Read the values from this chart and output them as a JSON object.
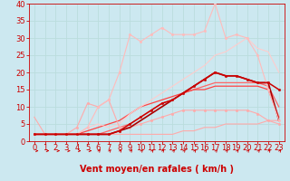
{
  "background_color": "#cce8f0",
  "grid_color": "#bbdddd",
  "xlabel": "Vent moyen/en rafales ( km/h )",
  "xlabel_color": "#cc0000",
  "xlabel_fontsize": 7,
  "tick_color": "#cc0000",
  "tick_fontsize": 6,
  "xlim": [
    -0.5,
    23.5
  ],
  "ylim": [
    0,
    40
  ],
  "yticks": [
    0,
    5,
    10,
    15,
    20,
    25,
    30,
    35,
    40
  ],
  "xticks": [
    0,
    1,
    2,
    3,
    4,
    5,
    6,
    7,
    8,
    9,
    10,
    11,
    12,
    13,
    14,
    15,
    16,
    17,
    18,
    19,
    20,
    21,
    22,
    23
  ],
  "series": [
    {
      "x": [
        0,
        1,
        2,
        3,
        4,
        5,
        6,
        7,
        8,
        9,
        10,
        11,
        12,
        13,
        14,
        15,
        16,
        17,
        18,
        19,
        20,
        21,
        22,
        23
      ],
      "y": [
        7,
        2,
        2,
        2,
        2,
        2,
        2,
        2,
        2,
        2,
        2,
        2,
        2,
        2,
        3,
        3,
        4,
        4,
        5,
        5,
        5,
        5,
        6,
        6
      ],
      "color": "#ffaaaa",
      "linewidth": 0.8,
      "marker": null,
      "zorder": 2
    },
    {
      "x": [
        0,
        1,
        2,
        3,
        4,
        5,
        6,
        7,
        8,
        9,
        10,
        11,
        12,
        13,
        14,
        15,
        16,
        17,
        18,
        19,
        20,
        21,
        22,
        23
      ],
      "y": [
        2,
        2,
        2,
        2,
        4,
        11,
        10,
        12,
        4,
        4,
        5,
        6,
        7,
        8,
        9,
        9,
        9,
        9,
        9,
        9,
        9,
        8,
        6,
        5
      ],
      "color": "#ffaaaa",
      "linewidth": 0.8,
      "marker": "o",
      "markersize": 1.8,
      "zorder": 3
    },
    {
      "x": [
        0,
        1,
        2,
        3,
        4,
        5,
        6,
        7,
        8,
        9,
        10,
        11,
        12,
        13,
        14,
        15,
        16,
        17,
        18,
        19,
        20,
        21,
        22,
        23
      ],
      "y": [
        2,
        2,
        2,
        2,
        2,
        2,
        2,
        3,
        4,
        5,
        7,
        9,
        11,
        12,
        14,
        15,
        16,
        17,
        17,
        17,
        17,
        17,
        16,
        10
      ],
      "color": "#ff6666",
      "linewidth": 0.9,
      "marker": null,
      "zorder": 2
    },
    {
      "x": [
        0,
        1,
        2,
        3,
        4,
        5,
        6,
        7,
        8,
        9,
        10,
        11,
        12,
        13,
        14,
        15,
        16,
        17,
        18,
        19,
        20,
        21,
        22,
        23
      ],
      "y": [
        2,
        2,
        2,
        2,
        2,
        3,
        4,
        5,
        6,
        8,
        10,
        11,
        12,
        13,
        14,
        15,
        15,
        16,
        16,
        16,
        16,
        16,
        15,
        7
      ],
      "color": "#ff4444",
      "linewidth": 0.9,
      "marker": null,
      "zorder": 2
    },
    {
      "x": [
        0,
        1,
        2,
        3,
        4,
        5,
        6,
        7,
        8,
        9,
        10,
        11,
        12,
        13,
        14,
        15,
        16,
        17,
        18,
        19,
        20,
        21,
        22,
        23
      ],
      "y": [
        2,
        2,
        2,
        2,
        2,
        2,
        2,
        2,
        3,
        5,
        7,
        9,
        11,
        12,
        14,
        16,
        18,
        20,
        19,
        19,
        18,
        17,
        17,
        15
      ],
      "color": "#cc0000",
      "linewidth": 1.1,
      "marker": "o",
      "markersize": 1.8,
      "zorder": 4
    },
    {
      "x": [
        0,
        1,
        2,
        3,
        4,
        5,
        6,
        7,
        8,
        9,
        10,
        11,
        12,
        13,
        14,
        15,
        16,
        17,
        18,
        19,
        20,
        21,
        22,
        23
      ],
      "y": [
        2,
        2,
        2,
        2,
        2,
        2,
        2,
        2,
        3,
        4,
        6,
        8,
        10,
        12,
        14,
        16,
        18,
        20,
        19,
        19,
        18,
        17,
        17,
        6
      ],
      "color": "#aa0000",
      "linewidth": 1.2,
      "marker": null,
      "zorder": 3
    },
    {
      "x": [
        0,
        1,
        2,
        3,
        4,
        5,
        6,
        7,
        8,
        9,
        10,
        11,
        12,
        13,
        14,
        15,
        16,
        17,
        18,
        19,
        20,
        21,
        22,
        23
      ],
      "y": [
        2,
        2,
        2,
        2,
        2,
        4,
        5,
        4,
        5,
        8,
        10,
        12,
        14,
        16,
        18,
        20,
        22,
        25,
        26,
        28,
        30,
        27,
        26,
        20
      ],
      "color": "#ffcccc",
      "linewidth": 0.8,
      "marker": null,
      "zorder": 2
    },
    {
      "x": [
        0,
        1,
        2,
        3,
        4,
        5,
        6,
        7,
        8,
        9,
        10,
        11,
        12,
        13,
        14,
        15,
        16,
        17,
        18,
        19,
        20,
        21,
        22,
        23
      ],
      "y": [
        2,
        2,
        2,
        2,
        2,
        4,
        10,
        12,
        20,
        31,
        29,
        31,
        33,
        31,
        31,
        31,
        32,
        40,
        30,
        31,
        30,
        25,
        15,
        6
      ],
      "color": "#ffbbbb",
      "linewidth": 0.8,
      "marker": "o",
      "markersize": 1.8,
      "zorder": 3
    }
  ],
  "arrows": {
    "horizontal_up_to": 5,
    "color": "#cc0000"
  }
}
